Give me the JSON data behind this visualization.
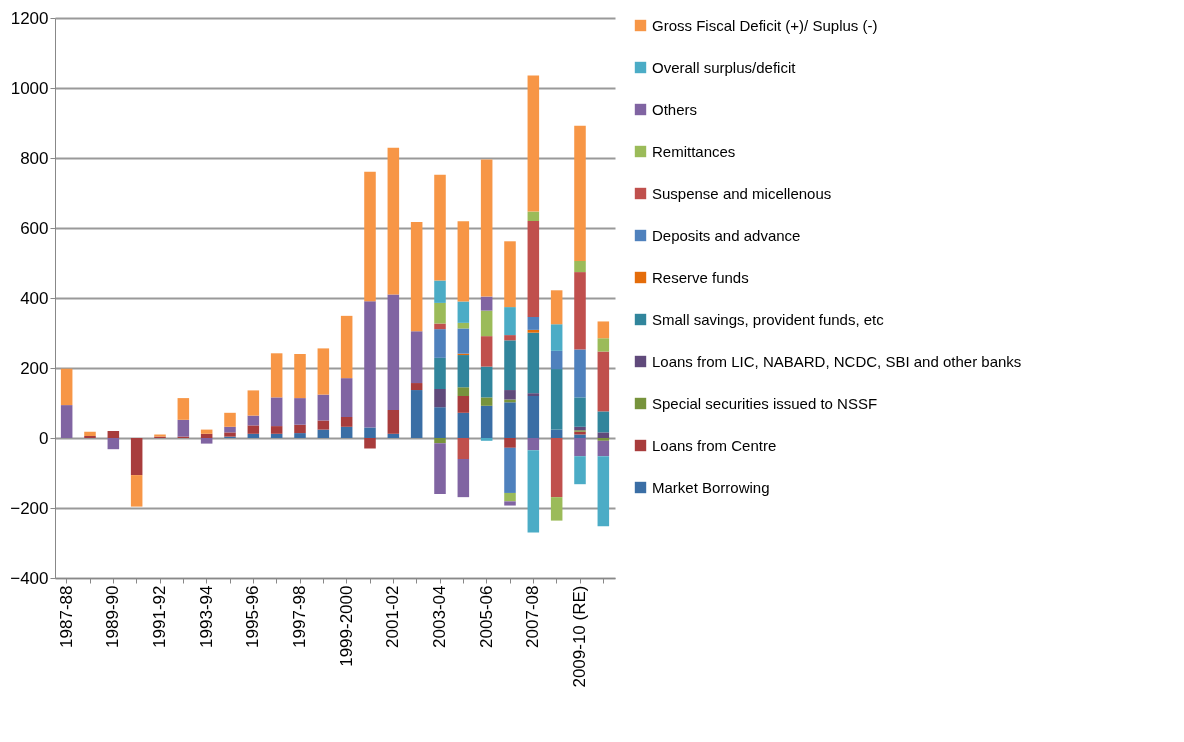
{
  "chart_data": {
    "type": "bar",
    "stacked": true,
    "legend": "right",
    "grid": "y",
    "categories": [
      "1987-88",
      null,
      "1989-90",
      null,
      "1991-92",
      null,
      "1993-94",
      null,
      "1995-96",
      null,
      "1997-98",
      null,
      "1999-2000",
      null,
      "2001-02",
      null,
      "2003-04",
      null,
      "2005-06",
      null,
      "2007-08",
      null,
      "2009-10 (RE)",
      null
    ],
    "ylim": [
      -400,
      1200
    ],
    "yticks": [
      -400,
      -200,
      0,
      200,
      400,
      600,
      800,
      1000,
      1200
    ],
    "series": [
      {
        "name": "Market Borrowing",
        "color": "#3a6ea5",
        "values": [
          null,
          null,
          null,
          null,
          null,
          null,
          null,
          4,
          12,
          12,
          14,
          24,
          32,
          30,
          12,
          137,
          88,
          72,
          92,
          102,
          120,
          24,
          10,
          null
        ]
      },
      {
        "name": "Loans from Centre",
        "color": "#a83c3c",
        "values": [
          null,
          6,
          20,
          -106,
          4,
          4,
          12,
          12,
          24,
          22,
          24,
          26,
          28,
          -30,
          68,
          20,
          null,
          48,
          null,
          -28,
          null,
          null,
          8,
          null
        ]
      },
      {
        "name": "Special securities issued to NSSF",
        "color": "#77933c",
        "values": [
          null,
          null,
          null,
          null,
          null,
          null,
          null,
          null,
          null,
          null,
          null,
          null,
          null,
          null,
          null,
          null,
          -15,
          25,
          24,
          8,
          null,
          null,
          4,
          -8
        ]
      },
      {
        "name": "Loans from LIC, NABARD, NCDC, SBI and other banks",
        "color": "#604a7b",
        "values": [
          null,
          null,
          null,
          null,
          null,
          null,
          null,
          null,
          null,
          null,
          null,
          null,
          null,
          null,
          null,
          null,
          52,
          null,
          null,
          27,
          8,
          null,
          10,
          16
        ]
      },
      {
        "name": "Small savings, provident funds, etc",
        "color": "#31859c",
        "values": [
          null,
          null,
          null,
          null,
          null,
          null,
          null,
          null,
          null,
          null,
          null,
          null,
          null,
          null,
          null,
          null,
          89,
          92,
          88,
          142,
          173,
          173,
          84,
          60
        ]
      },
      {
        "name": "Reserve funds",
        "color": "#e46c0a",
        "values": [
          null,
          null,
          null,
          null,
          null,
          null,
          null,
          null,
          null,
          null,
          null,
          null,
          null,
          null,
          null,
          null,
          null,
          4,
          null,
          null,
          8,
          null,
          null,
          null
        ]
      },
      {
        "name": "Deposits and advance",
        "color": "#4f81bd",
        "values": [
          null,
          null,
          null,
          null,
          null,
          null,
          null,
          null,
          null,
          null,
          null,
          null,
          null,
          null,
          null,
          null,
          82,
          72,
          null,
          -129,
          37,
          52,
          137,
          null
        ]
      },
      {
        "name": "Suspense and micellenous",
        "color": "#c0504d",
        "values": [
          null,
          null,
          null,
          null,
          null,
          null,
          null,
          null,
          null,
          null,
          null,
          null,
          null,
          null,
          null,
          null,
          16,
          -60,
          87,
          15,
          274,
          -169,
          221,
          171
        ]
      },
      {
        "name": "Remittances",
        "color": "#9bbb59",
        "values": [
          null,
          null,
          null,
          null,
          null,
          null,
          null,
          null,
          null,
          null,
          null,
          null,
          null,
          null,
          null,
          null,
          59,
          16,
          73,
          -24,
          27,
          -67,
          32,
          38
        ]
      },
      {
        "name": "Others",
        "color": "#8064a2",
        "values": [
          94,
          null,
          -32,
          null,
          null,
          48,
          -16,
          16,
          28,
          82,
          76,
          74,
          111,
          361,
          330,
          148,
          -145,
          -109,
          40,
          -12,
          -35,
          null,
          -52,
          -44
        ]
      },
      {
        "name": "Overall surplus/deficit",
        "color": "#4bacc6",
        "values": [
          null,
          null,
          null,
          null,
          null,
          null,
          null,
          null,
          null,
          null,
          null,
          null,
          null,
          null,
          null,
          null,
          64,
          61,
          -8,
          80,
          -235,
          76,
          -80,
          -200
        ]
      },
      {
        "name": "Gross Fiscal Deficit (+)/ Suplus (-)",
        "color": "#f79646",
        "values": [
          104,
          12,
          null,
          -90,
          6,
          62,
          12,
          40,
          72,
          126,
          126,
          132,
          178,
          370,
          419,
          312,
          302,
          229,
          392,
          188,
          389,
          97,
          386,
          48
        ]
      }
    ]
  }
}
